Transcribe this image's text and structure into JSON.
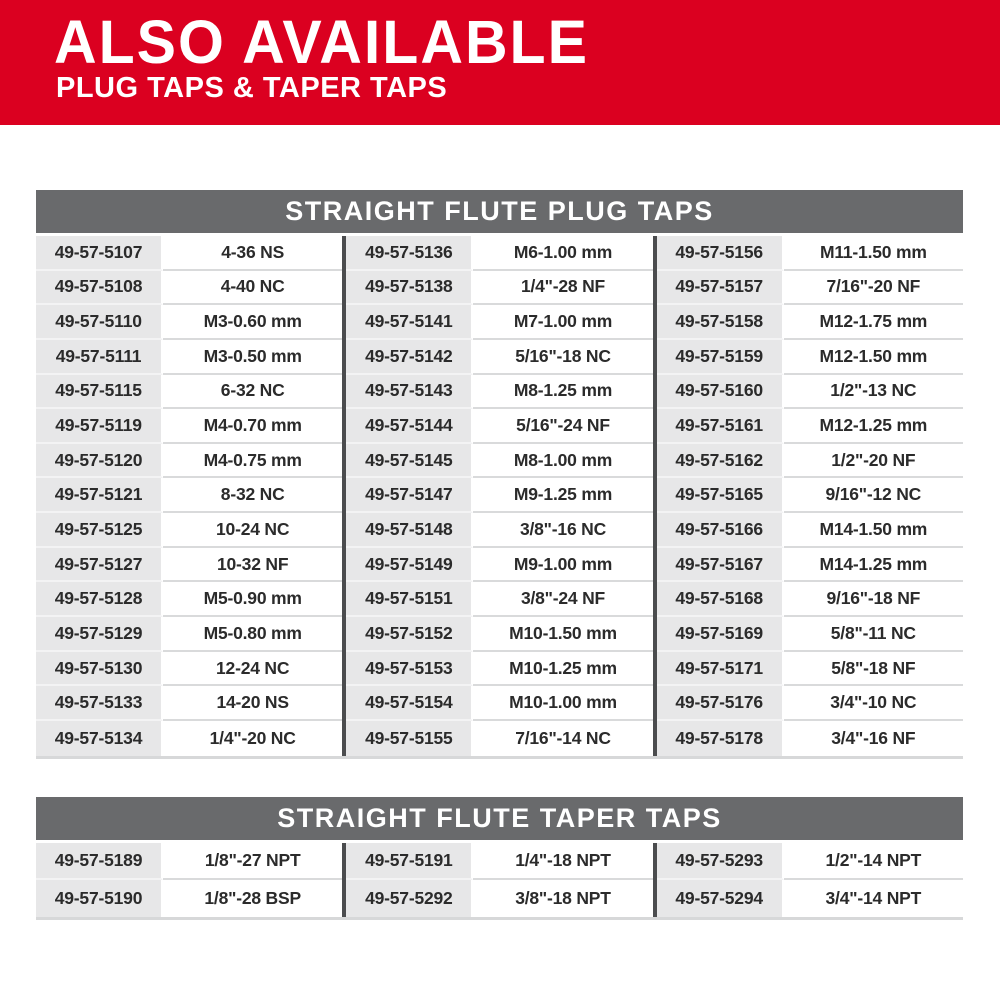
{
  "banner": {
    "title": "ALSO AVAILABLE",
    "subtitle": "PLUG TAPS & TAPER TAPS",
    "background_color": "#db0020",
    "text_color": "#ffffff"
  },
  "colors": {
    "table_header_bg": "#696a6c",
    "table_header_text": "#ffffff",
    "sku_cell_bg": "#e7e7e8",
    "size_cell_bg": "#ffffff",
    "column_divider": "#4b4c4e",
    "row_line_on_white": "#d9dadb",
    "row_line_on_gray": "#f3f3f4",
    "cell_text": "#2b2b2b"
  },
  "tables": [
    {
      "title": "STRAIGHT FLUTE PLUG TAPS",
      "column_groups": [
        [
          {
            "sku": "49-57-5107",
            "size": "4-36 NS"
          },
          {
            "sku": "49-57-5108",
            "size": "4-40 NC"
          },
          {
            "sku": "49-57-5110",
            "size": "M3-0.60 mm"
          },
          {
            "sku": "49-57-5111",
            "size": "M3-0.50 mm"
          },
          {
            "sku": "49-57-5115",
            "size": "6-32 NC"
          },
          {
            "sku": "49-57-5119",
            "size": "M4-0.70 mm"
          },
          {
            "sku": "49-57-5120",
            "size": "M4-0.75 mm"
          },
          {
            "sku": "49-57-5121",
            "size": "8-32 NC"
          },
          {
            "sku": "49-57-5125",
            "size": "10-24 NC"
          },
          {
            "sku": "49-57-5127",
            "size": "10-32 NF"
          },
          {
            "sku": "49-57-5128",
            "size": "M5-0.90 mm"
          },
          {
            "sku": "49-57-5129",
            "size": "M5-0.80 mm"
          },
          {
            "sku": "49-57-5130",
            "size": "12-24 NC"
          },
          {
            "sku": "49-57-5133",
            "size": "14-20 NS"
          },
          {
            "sku": "49-57-5134",
            "size": "1/4\"-20 NC"
          }
        ],
        [
          {
            "sku": "49-57-5136",
            "size": "M6-1.00 mm"
          },
          {
            "sku": "49-57-5138",
            "size": "1/4\"-28 NF"
          },
          {
            "sku": "49-57-5141",
            "size": "M7-1.00 mm"
          },
          {
            "sku": "49-57-5142",
            "size": "5/16\"-18 NC"
          },
          {
            "sku": "49-57-5143",
            "size": "M8-1.25 mm"
          },
          {
            "sku": "49-57-5144",
            "size": "5/16\"-24 NF"
          },
          {
            "sku": "49-57-5145",
            "size": "M8-1.00 mm"
          },
          {
            "sku": "49-57-5147",
            "size": "M9-1.25 mm"
          },
          {
            "sku": "49-57-5148",
            "size": "3/8\"-16 NC"
          },
          {
            "sku": "49-57-5149",
            "size": "M9-1.00 mm"
          },
          {
            "sku": "49-57-5151",
            "size": "3/8\"-24 NF"
          },
          {
            "sku": "49-57-5152",
            "size": "M10-1.50 mm"
          },
          {
            "sku": "49-57-5153",
            "size": "M10-1.25 mm"
          },
          {
            "sku": "49-57-5154",
            "size": "M10-1.00 mm"
          },
          {
            "sku": "49-57-5155",
            "size": "7/16\"-14 NC"
          }
        ],
        [
          {
            "sku": "49-57-5156",
            "size": "M11-1.50 mm"
          },
          {
            "sku": "49-57-5157",
            "size": "7/16\"-20 NF"
          },
          {
            "sku": "49-57-5158",
            "size": "M12-1.75 mm"
          },
          {
            "sku": "49-57-5159",
            "size": "M12-1.50 mm"
          },
          {
            "sku": "49-57-5160",
            "size": "1/2\"-13 NC"
          },
          {
            "sku": "49-57-5161",
            "size": "M12-1.25 mm"
          },
          {
            "sku": "49-57-5162",
            "size": "1/2\"-20 NF"
          },
          {
            "sku": "49-57-5165",
            "size": "9/16\"-12 NC"
          },
          {
            "sku": "49-57-5166",
            "size": "M14-1.50 mm"
          },
          {
            "sku": "49-57-5167",
            "size": "M14-1.25 mm"
          },
          {
            "sku": "49-57-5168",
            "size": "9/16\"-18 NF"
          },
          {
            "sku": "49-57-5169",
            "size": "5/8\"-11 NC"
          },
          {
            "sku": "49-57-5171",
            "size": "5/8\"-18 NF"
          },
          {
            "sku": "49-57-5176",
            "size": "3/4\"-10 NC"
          },
          {
            "sku": "49-57-5178",
            "size": "3/4\"-16 NF"
          }
        ]
      ]
    },
    {
      "title": "STRAIGHT FLUTE TAPER TAPS",
      "column_groups": [
        [
          {
            "sku": "49-57-5189",
            "size": "1/8\"-27 NPT"
          },
          {
            "sku": "49-57-5190",
            "size": "1/8\"-28 BSP"
          }
        ],
        [
          {
            "sku": "49-57-5191",
            "size": "1/4\"-18 NPT"
          },
          {
            "sku": "49-57-5292",
            "size": "3/8\"-18 NPT"
          }
        ],
        [
          {
            "sku": "49-57-5293",
            "size": "1/2\"-14 NPT"
          },
          {
            "sku": "49-57-5294",
            "size": "3/4\"-14 NPT"
          }
        ]
      ]
    }
  ]
}
